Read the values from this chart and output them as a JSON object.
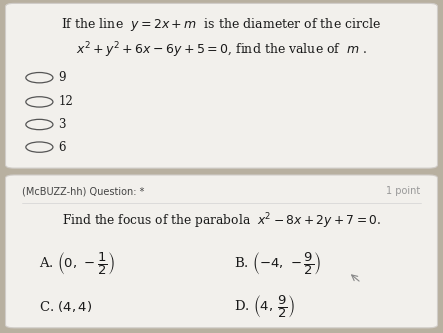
{
  "bg_color": "#b8b0a0",
  "card1_color": "#f2f0ec",
  "card2_color": "#f2f0ec",
  "card1_line1": "If the line  $y = 2x + m$  is the diameter of the circle",
  "card1_line2": "$x^2 + y^2 + 6x - 6y + 5 = 0$, find the value of  $m$ .",
  "options_q1": [
    "9",
    "12",
    "3",
    "6"
  ],
  "card2_label": "(McBUZZ-hh) Question: *",
  "card2_points": "1 point",
  "card2_question": "Find the focus of the parabola  $x^2 - 8x + 2y + 7 = 0$.",
  "answer_A": "A. $\\left(0,\\,-\\dfrac{1}{2}\\right)$",
  "answer_B": "B. $\\left(-4,\\,-\\dfrac{9}{2}\\right)$",
  "answer_C": "C. $(4,4)$",
  "answer_D": "D. $\\left(4,\\,\\dfrac{9}{2}\\right)$",
  "text_color": "#1a1a1a",
  "label_color": "#444444",
  "point_color": "#999999",
  "radio_color": "#555555"
}
